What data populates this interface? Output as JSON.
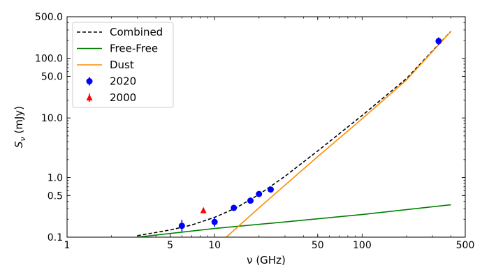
{
  "chart_data": {
    "type": "scatter",
    "xlabel": "ν (GHz)",
    "ylabel_main": "S",
    "ylabel_sub": "ν",
    "ylabel_unit": " (mJy)",
    "xscale": "log",
    "yscale": "log",
    "xlim": [
      1,
      500
    ],
    "ylim": [
      0.1,
      500
    ],
    "x_ticks": [
      {
        "value": 1,
        "label": "1"
      },
      {
        "value": 5,
        "label": "5"
      },
      {
        "value": 10,
        "label": "10"
      },
      {
        "value": 50,
        "label": "50"
      },
      {
        "value": 100,
        "label": "100"
      },
      {
        "value": 500,
        "label": "500"
      }
    ],
    "y_ticks": [
      {
        "value": 0.1,
        "label": "0.1"
      },
      {
        "value": 0.5,
        "label": "0.5"
      },
      {
        "value": 1,
        "label": "1.0"
      },
      {
        "value": 10,
        "label": "10.0"
      },
      {
        "value": 50,
        "label": "50.0"
      },
      {
        "value": 100,
        "label": "100.0"
      },
      {
        "value": 500,
        "label": "500.0"
      }
    ],
    "grid": false,
    "legend_position": "top-left",
    "series": [
      {
        "name": "Combined",
        "kind": "line",
        "color": "#000000",
        "dash": true,
        "x": [
          3,
          5,
          7,
          10,
          14,
          20,
          30,
          50,
          100,
          200,
          400
        ],
        "y": [
          0.106,
          0.132,
          0.16,
          0.215,
          0.31,
          0.52,
          1.05,
          2.8,
          11,
          46,
          285
        ]
      },
      {
        "name": "Free-Free",
        "kind": "line",
        "color": "#008000",
        "dash": false,
        "x": [
          3,
          10,
          30,
          100,
          400
        ],
        "y": [
          0.1,
          0.14,
          0.18,
          0.24,
          0.35
        ]
      },
      {
        "name": "Dust",
        "kind": "line",
        "color": "#ff8c00",
        "dash": false,
        "x": [
          12,
          20,
          50,
          100,
          200,
          400
        ],
        "y": [
          0.1,
          0.31,
          2.25,
          9.7,
          43.5,
          285
        ]
      },
      {
        "name": "2020",
        "kind": "points",
        "marker": "circle",
        "color": "#0000ff",
        "x": [
          6,
          10,
          13.5,
          17.5,
          20,
          24,
          330
        ],
        "y": [
          0.155,
          0.18,
          0.31,
          0.41,
          0.53,
          0.63,
          195
        ],
        "err_low": [
          0.125,
          0.15,
          0.28,
          0.38,
          0.49,
          0.58,
          170
        ],
        "err_high": [
          0.195,
          0.22,
          0.34,
          0.44,
          0.57,
          0.68,
          225
        ]
      },
      {
        "name": "2000",
        "kind": "points",
        "marker": "triangle",
        "color": "#ff0000",
        "x": [
          8.4
        ],
        "y": [
          0.28
        ],
        "err_low": [
          0.26
        ],
        "err_high": [
          0.3
        ]
      }
    ]
  }
}
